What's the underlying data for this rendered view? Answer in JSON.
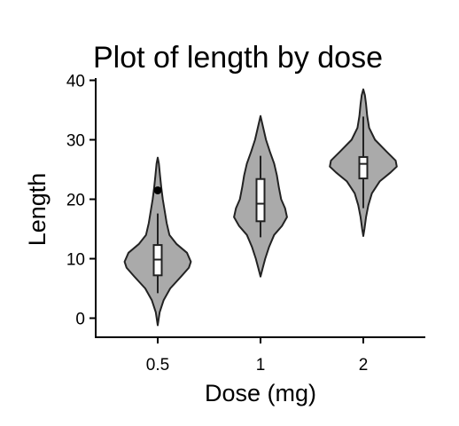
{
  "chart_data": {
    "type": "violin",
    "title": "Plot of length  by dose",
    "xlabel": "Dose (mg)",
    "ylabel": "Length",
    "categories": [
      "0.5",
      "1",
      "2"
    ],
    "ylim": [
      -3,
      42
    ],
    "yticks": [
      0,
      10,
      20,
      30,
      40
    ],
    "fill_color": "#aaaaaa",
    "line_color": "#222222",
    "grid": false,
    "legend": "none",
    "violins": [
      {
        "category": "0.5",
        "range": [
          -1.2,
          27.0
        ],
        "density": [
          [
            -1.2,
            0
          ],
          [
            1,
            0.05
          ],
          [
            3,
            0.15
          ],
          [
            5,
            0.32
          ],
          [
            7,
            0.6
          ],
          [
            8.5,
            0.8
          ],
          [
            9.5,
            0.85
          ],
          [
            11,
            0.75
          ],
          [
            12.5,
            0.48
          ],
          [
            14,
            0.3
          ],
          [
            16,
            0.23
          ],
          [
            18,
            0.18
          ],
          [
            20,
            0.13
          ],
          [
            22,
            0.09
          ],
          [
            24,
            0.06
          ],
          [
            26,
            0.03
          ],
          [
            27.0,
            0
          ]
        ],
        "box": {
          "whisker_low": 4.2,
          "q1": 7.2,
          "median": 9.85,
          "q3": 12.3,
          "whisker_high": 17.6
        },
        "outliers": [
          21.5
        ]
      },
      {
        "category": "1",
        "range": [
          7.0,
          34.0
        ],
        "density": [
          [
            7.0,
            0
          ],
          [
            8.5,
            0.06
          ],
          [
            10,
            0.12
          ],
          [
            12,
            0.22
          ],
          [
            14,
            0.35
          ],
          [
            15.5,
            0.55
          ],
          [
            17,
            0.68
          ],
          [
            18.5,
            0.63
          ],
          [
            20,
            0.53
          ],
          [
            22,
            0.47
          ],
          [
            24,
            0.42
          ],
          [
            26,
            0.35
          ],
          [
            28,
            0.24
          ],
          [
            30,
            0.14
          ],
          [
            32,
            0.07
          ],
          [
            34.0,
            0
          ]
        ],
        "box": {
          "whisker_low": 13.6,
          "q1": 16.3,
          "median": 19.25,
          "q3": 23.4,
          "whisker_high": 27.3
        },
        "outliers": []
      },
      {
        "category": "2",
        "range": [
          13.8,
          38.5
        ],
        "density": [
          [
            13.8,
            0
          ],
          [
            15,
            0.03
          ],
          [
            17,
            0.07
          ],
          [
            19,
            0.13
          ],
          [
            21,
            0.22
          ],
          [
            23,
            0.42
          ],
          [
            24.5,
            0.7
          ],
          [
            25.5,
            0.86
          ],
          [
            26.5,
            0.83
          ],
          [
            28,
            0.6
          ],
          [
            30,
            0.3
          ],
          [
            32,
            0.15
          ],
          [
            34,
            0.1
          ],
          [
            36,
            0.07
          ],
          [
            37.5,
            0.04
          ],
          [
            38.5,
            0
          ]
        ],
        "box": {
          "whisker_low": 18.5,
          "q1": 23.5,
          "median": 25.95,
          "q3": 27.1,
          "whisker_high": 33.9
        },
        "outliers": []
      }
    ]
  }
}
